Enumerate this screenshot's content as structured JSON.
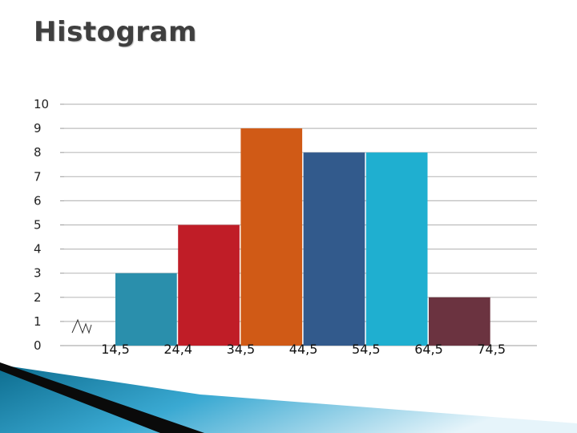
{
  "slide": {
    "title": "Histogram"
  },
  "chart_data": {
    "type": "bar",
    "title": "",
    "xlabel": "",
    "ylabel": "",
    "ylim": [
      0,
      10
    ],
    "yticks": [
      "0",
      "1",
      "2",
      "3",
      "4",
      "5",
      "6",
      "7",
      "8",
      "9",
      "10"
    ],
    "bin_edges": [
      "14,5",
      "24,4",
      "34,5",
      "44,5",
      "54,5",
      "64,5",
      "74,5"
    ],
    "values": [
      3,
      5,
      9,
      8,
      8,
      2
    ],
    "bar_colors": [
      "#2a8fac",
      "#c01d27",
      "#d05a16",
      "#325a8c",
      "#1fafd0",
      "#6b3340"
    ],
    "grid": true,
    "axis_break": true
  }
}
